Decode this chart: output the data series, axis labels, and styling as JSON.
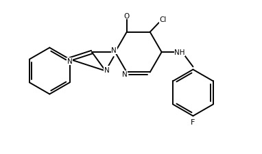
{
  "background_color": "#ffffff",
  "line_color": "#000000",
  "line_width": 1.4,
  "font_size": 7.5,
  "figsize": [
    3.82,
    2.26
  ],
  "dpi": 100,
  "xlim": [
    -1.5,
    8.5
  ],
  "ylim": [
    -3.5,
    3.0
  ]
}
